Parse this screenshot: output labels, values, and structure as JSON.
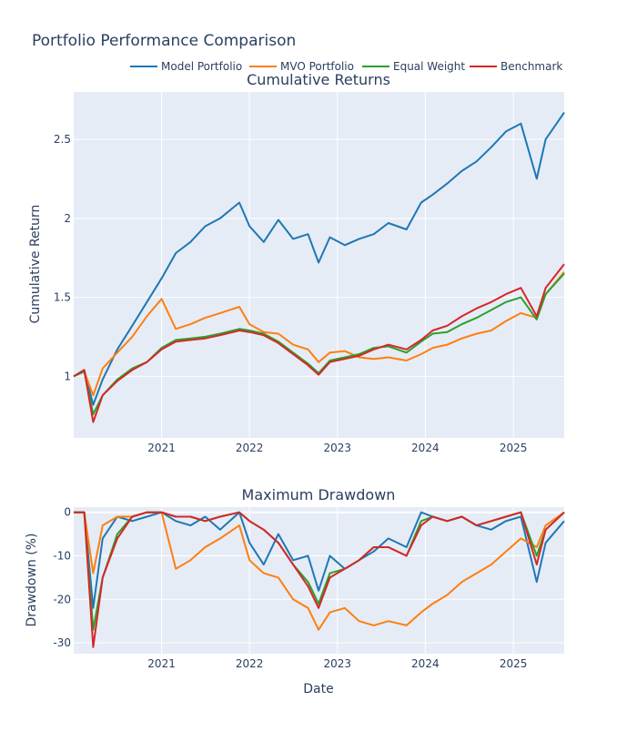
{
  "title": "Portfolio Performance Comparison",
  "legend_position": "top-right, horizontal",
  "colors": {
    "model": "#1f77b4",
    "mvo": "#ff7f0e",
    "equal": "#2ca02c",
    "benchmark": "#d62728",
    "plot_bg": "#e5ecf6",
    "grid": "#ffffff",
    "text": "#2a3f5f"
  },
  "chart_data": [
    {
      "type": "line",
      "title": "Cumulative Returns",
      "xlabel": "",
      "ylabel": "Cumulative Return",
      "x_ticks": [
        "2021",
        "2022",
        "2023",
        "2024",
        "2025"
      ],
      "y_ticks": [
        "1",
        "1.5",
        "2",
        "2.5"
      ],
      "xlim": [
        "2020-01-02",
        "2025-07-31"
      ],
      "ylim": [
        0.61,
        2.8
      ],
      "grid": true,
      "x": [
        "2020-01-02",
        "2020-02-15",
        "2020-03-23",
        "2020-05-01",
        "2020-07-01",
        "2020-09-01",
        "2020-11-01",
        "2021-01-01",
        "2021-03-01",
        "2021-05-01",
        "2021-07-01",
        "2021-09-01",
        "2021-11-20",
        "2022-01-01",
        "2022-03-01",
        "2022-05-01",
        "2022-07-01",
        "2022-09-01",
        "2022-10-15",
        "2022-12-01",
        "2023-02-01",
        "2023-04-01",
        "2023-06-01",
        "2023-08-01",
        "2023-10-15",
        "2023-12-15",
        "2024-02-01",
        "2024-04-01",
        "2024-06-01",
        "2024-08-01",
        "2024-10-01",
        "2024-12-01",
        "2025-02-01",
        "2025-04-08",
        "2025-05-15",
        "2025-07-31"
      ],
      "series": [
        {
          "name": "Model Portfolio",
          "values": [
            1.0,
            1.04,
            0.82,
            0.98,
            1.17,
            1.32,
            1.47,
            1.62,
            1.78,
            1.85,
            1.95,
            2.0,
            2.1,
            1.95,
            1.85,
            1.99,
            1.87,
            1.9,
            1.72,
            1.88,
            1.83,
            1.87,
            1.9,
            1.97,
            1.93,
            2.1,
            2.15,
            2.22,
            2.3,
            2.36,
            2.45,
            2.55,
            2.6,
            2.25,
            2.5,
            2.67
          ]
        },
        {
          "name": "MVO Portfolio",
          "values": [
            1.0,
            1.03,
            0.88,
            1.05,
            1.15,
            1.25,
            1.38,
            1.49,
            1.3,
            1.33,
            1.37,
            1.4,
            1.44,
            1.33,
            1.28,
            1.27,
            1.2,
            1.17,
            1.09,
            1.15,
            1.16,
            1.12,
            1.11,
            1.12,
            1.1,
            1.14,
            1.18,
            1.2,
            1.24,
            1.27,
            1.29,
            1.35,
            1.4,
            1.37,
            1.52,
            1.66
          ]
        },
        {
          "name": "Equal Weight",
          "values": [
            1.0,
            1.03,
            0.76,
            0.88,
            0.98,
            1.05,
            1.09,
            1.18,
            1.23,
            1.24,
            1.25,
            1.27,
            1.3,
            1.29,
            1.27,
            1.22,
            1.15,
            1.08,
            1.02,
            1.1,
            1.12,
            1.14,
            1.18,
            1.19,
            1.15,
            1.22,
            1.27,
            1.28,
            1.33,
            1.37,
            1.42,
            1.47,
            1.5,
            1.36,
            1.52,
            1.65
          ]
        },
        {
          "name": "Benchmark",
          "values": [
            1.0,
            1.04,
            0.71,
            0.88,
            0.97,
            1.04,
            1.09,
            1.17,
            1.22,
            1.23,
            1.24,
            1.26,
            1.29,
            1.28,
            1.26,
            1.21,
            1.14,
            1.07,
            1.01,
            1.09,
            1.11,
            1.13,
            1.17,
            1.2,
            1.17,
            1.23,
            1.29,
            1.32,
            1.38,
            1.43,
            1.47,
            1.52,
            1.56,
            1.38,
            1.56,
            1.71
          ]
        }
      ]
    },
    {
      "type": "line",
      "title": "Maximum Drawdown",
      "xlabel": "Date",
      "ylabel": "Drawdown (%)",
      "x_ticks": [
        "2021",
        "2022",
        "2023",
        "2024",
        "2025"
      ],
      "y_ticks": [
        "0",
        "-10",
        "-20",
        "-30"
      ],
      "xlim": [
        "2020-01-02",
        "2025-07-31"
      ],
      "ylim": [
        -32.5,
        1.2
      ],
      "grid": true,
      "x": [
        "2020-01-02",
        "2020-02-15",
        "2020-03-23",
        "2020-05-01",
        "2020-07-01",
        "2020-09-01",
        "2020-11-01",
        "2021-01-01",
        "2021-03-01",
        "2021-05-01",
        "2021-07-01",
        "2021-09-01",
        "2021-11-20",
        "2022-01-01",
        "2022-03-01",
        "2022-05-01",
        "2022-07-01",
        "2022-09-01",
        "2022-10-15",
        "2022-12-01",
        "2023-02-01",
        "2023-04-01",
        "2023-06-01",
        "2023-08-01",
        "2023-10-15",
        "2023-12-15",
        "2024-02-01",
        "2024-04-01",
        "2024-06-01",
        "2024-08-01",
        "2024-10-01",
        "2024-12-01",
        "2025-02-01",
        "2025-04-08",
        "2025-05-15",
        "2025-07-31"
      ],
      "series": [
        {
          "name": "Model Portfolio",
          "values": [
            0,
            0,
            -22,
            -6,
            -1,
            -2,
            -1,
            0,
            -2,
            -3,
            -1,
            -4,
            0,
            -7,
            -12,
            -5,
            -11,
            -10,
            -18,
            -10,
            -13,
            -11,
            -9,
            -6,
            -8,
            0,
            -1,
            -2,
            -1,
            -3,
            -4,
            -2,
            -1,
            -16,
            -7,
            -2
          ]
        },
        {
          "name": "MVO Portfolio",
          "values": [
            0,
            0,
            -14,
            -3,
            -1,
            -1,
            0,
            0,
            -13,
            -11,
            -8,
            -6,
            -3,
            -11,
            -14,
            -15,
            -20,
            -22,
            -27,
            -23,
            -22,
            -25,
            -26,
            -25,
            -26,
            -23,
            -21,
            -19,
            -16,
            -14,
            -12,
            -9,
            -6,
            -8,
            -3,
            0
          ]
        },
        {
          "name": "Equal Weight",
          "values": [
            0,
            0,
            -27,
            -15,
            -5,
            -1,
            0,
            0,
            -1,
            -1,
            -2,
            -1,
            0,
            -2,
            -4,
            -7,
            -12,
            -16,
            -21,
            -14,
            -13,
            -11,
            -8,
            -8,
            -10,
            -2,
            -1,
            -2,
            -1,
            -3,
            -2,
            -1,
            0,
            -10,
            -4,
            0
          ]
        },
        {
          "name": "Benchmark",
          "values": [
            0,
            0,
            -31,
            -15,
            -6,
            -1,
            0,
            0,
            -1,
            -1,
            -2,
            -1,
            0,
            -2,
            -4,
            -7,
            -12,
            -17,
            -22,
            -15,
            -13,
            -11,
            -8,
            -8,
            -10,
            -3,
            -1,
            -2,
            -1,
            -3,
            -2,
            -1,
            0,
            -12,
            -4,
            0
          ]
        }
      ]
    }
  ]
}
